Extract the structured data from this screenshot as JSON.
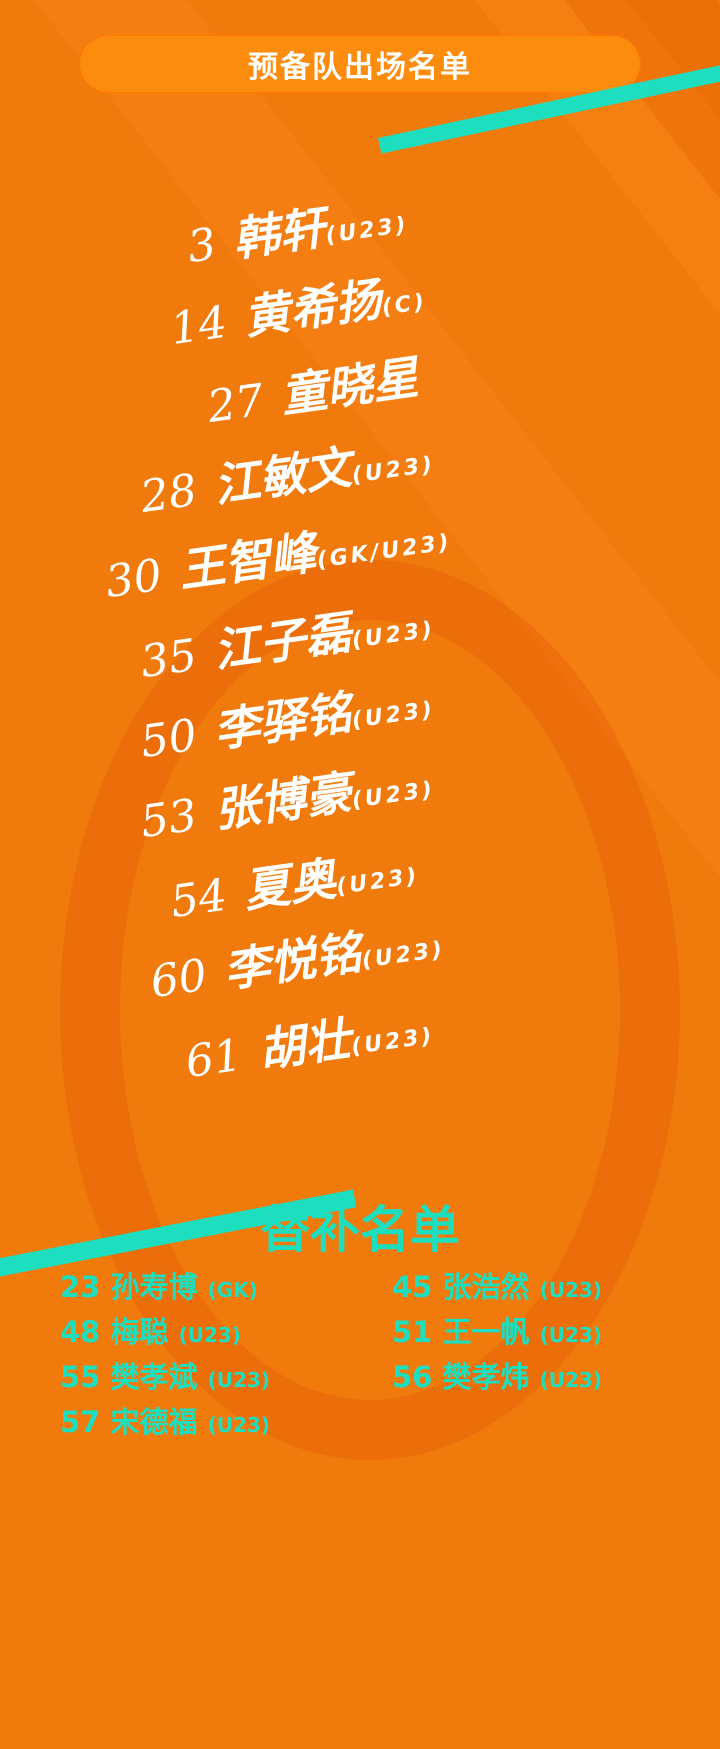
{
  "header": {
    "title": "预备队出场名单"
  },
  "colors": {
    "background": "#f07a0c",
    "accent_teal": "#1ddfc0",
    "header_pill": "#fb8c0e",
    "text": "#ffffff"
  },
  "lineup": [
    {
      "number": "3",
      "name": "韩轩",
      "tag": "(U23)"
    },
    {
      "number": "14",
      "name": "黄希扬",
      "tag": "(C)"
    },
    {
      "number": "27",
      "name": "童晓星",
      "tag": ""
    },
    {
      "number": "28",
      "name": "江敏文",
      "tag": "(U23)"
    },
    {
      "number": "30",
      "name": "王智峰",
      "tag": "(GK/U23)"
    },
    {
      "number": "35",
      "name": "江子磊",
      "tag": "(U23)"
    },
    {
      "number": "50",
      "name": "李驿铭",
      "tag": "(U23)"
    },
    {
      "number": "53",
      "name": "张博豪",
      "tag": "(U23)"
    },
    {
      "number": "54",
      "name": "夏奥",
      "tag": "(U23)"
    },
    {
      "number": "60",
      "name": "李悦铭",
      "tag": "(U23)"
    },
    {
      "number": "61",
      "name": "胡壮",
      "tag": "(U23)"
    }
  ],
  "substitutes": {
    "title": "替补名单",
    "players": [
      {
        "label": "23 孙寿博",
        "tag": "(GK)"
      },
      {
        "label": "45 张浩然",
        "tag": "(U23)"
      },
      {
        "label": "48 梅聪",
        "tag": "(U23)"
      },
      {
        "label": "51 王一帆",
        "tag": "(U23)"
      },
      {
        "label": "55 樊孝斌",
        "tag": "(U23)"
      },
      {
        "label": "56 樊孝炜",
        "tag": "(U23)"
      },
      {
        "label": "57 宋德福",
        "tag": "(U23)"
      }
    ]
  }
}
